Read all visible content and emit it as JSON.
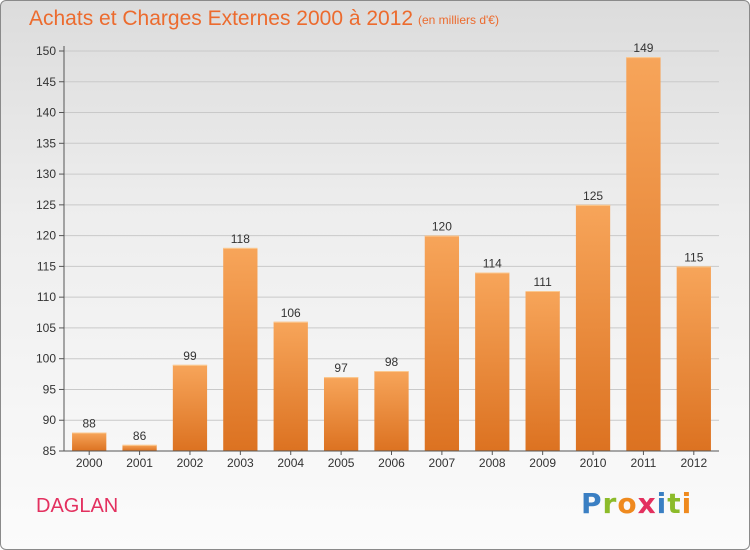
{
  "title": "Achats et Charges Externes 2000 à 2012",
  "subtitle": "(en milliers d'€)",
  "commune": "DAGLAN",
  "logo": {
    "text": "Proxiti",
    "letters": [
      {
        "ch": "P",
        "color": "#3a7fc3"
      },
      {
        "ch": "r",
        "color": "#8cbb2a"
      },
      {
        "ch": "o",
        "color": "#ef8a1e"
      },
      {
        "ch": "x",
        "color": "#e3305f"
      },
      {
        "ch": "i",
        "color": "#3a7fc3"
      },
      {
        "ch": "t",
        "color": "#8cbb2a"
      },
      {
        "ch": "i",
        "color": "#ef8a1e"
      }
    ]
  },
  "colors": {
    "accent": "#ec6b2e",
    "commune": "#e3305f",
    "bar_top": "#f7a55a",
    "bar_bottom": "#dc7221",
    "gridline": "#c9c9c9"
  },
  "chart_data": {
    "type": "bar",
    "title": "Achats et Charges Externes 2000 à 2012",
    "categories": [
      "2000",
      "2001",
      "2002",
      "2003",
      "2004",
      "2005",
      "2006",
      "2007",
      "2008",
      "2009",
      "2010",
      "2011",
      "2012"
    ],
    "values": [
      88,
      86,
      99,
      118,
      106,
      97,
      98,
      120,
      114,
      111,
      125,
      149,
      115
    ],
    "ylim": [
      85,
      150
    ],
    "yticks": [
      85,
      90,
      95,
      100,
      105,
      110,
      115,
      120,
      125,
      130,
      135,
      140,
      145,
      150
    ],
    "grid": true,
    "data_labels": true
  }
}
